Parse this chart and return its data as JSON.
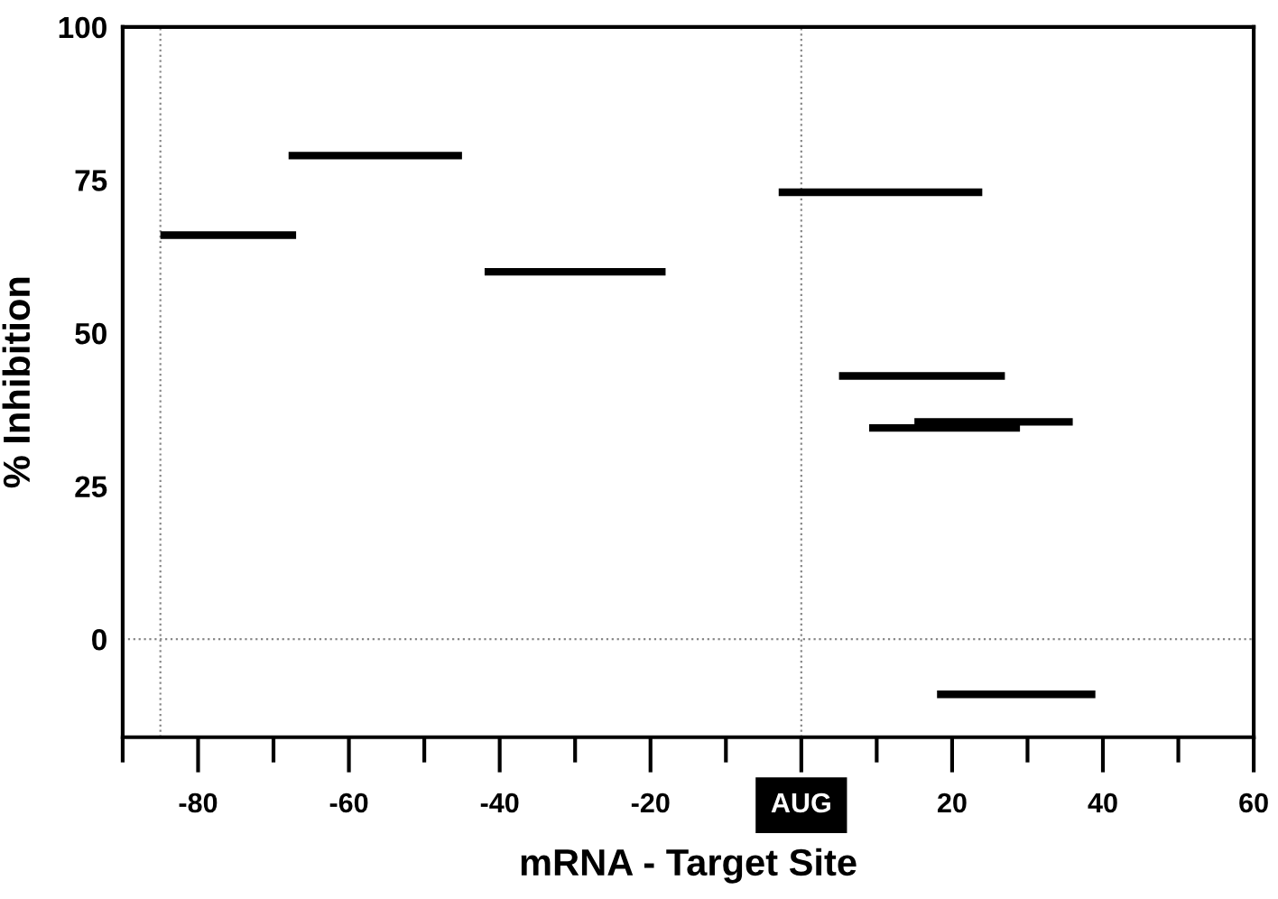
{
  "chart_data": {
    "type": "line",
    "xlabel": "mRNA - Target Site",
    "ylabel": "% Inhibition",
    "xlim": [
      -90,
      60
    ],
    "ylim": [
      -16,
      100
    ],
    "xticks": [
      {
        "value": -90,
        "label": null
      },
      -80,
      {
        "value": -70,
        "label": null
      },
      -60,
      {
        "value": -50,
        "label": null
      },
      -40,
      {
        "value": -30,
        "label": null
      },
      -20,
      {
        "value": -10,
        "label": null
      },
      {
        "value": 0,
        "label": "AUG"
      },
      {
        "value": 10,
        "label": null
      },
      20,
      {
        "value": 30,
        "label": null
      },
      40,
      {
        "value": 50,
        "label": null
      },
      60
    ],
    "yticks": [
      0,
      25,
      50,
      75,
      100
    ],
    "grid": false,
    "legend": false,
    "marker": "none",
    "line_style": "solid",
    "ref_lines": [
      {
        "axis": "x",
        "value": -85,
        "color": "#888888",
        "line_style": "dotted"
      },
      {
        "axis": "x",
        "value": 0,
        "color": "#888888",
        "line_style": "dotted"
      },
      {
        "axis": "y",
        "value": 0,
        "color": "#888888",
        "line_style": "dotted"
      }
    ],
    "series": [
      {
        "color": "#000000",
        "x": [
          -85,
          -67
        ],
        "values": [
          66,
          66
        ]
      },
      {
        "color": "#000000",
        "x": [
          -68,
          -45
        ],
        "values": [
          79,
          79
        ]
      },
      {
        "color": "#000000",
        "x": [
          -42,
          -18
        ],
        "values": [
          60,
          60
        ]
      },
      {
        "color": "#000000",
        "x": [
          -3,
          24
        ],
        "values": [
          73,
          73
        ]
      },
      {
        "color": "#000000",
        "x": [
          5,
          27
        ],
        "values": [
          43,
          43
        ]
      },
      {
        "color": "#000000",
        "x": [
          9,
          29
        ],
        "values": [
          34.5,
          34.5
        ]
      },
      {
        "color": "#000000",
        "x": [
          15,
          36
        ],
        "values": [
          35.5,
          35.5
        ]
      },
      {
        "color": "#000000",
        "x": [
          18,
          39
        ],
        "values": [
          -9,
          -9
        ]
      }
    ]
  }
}
